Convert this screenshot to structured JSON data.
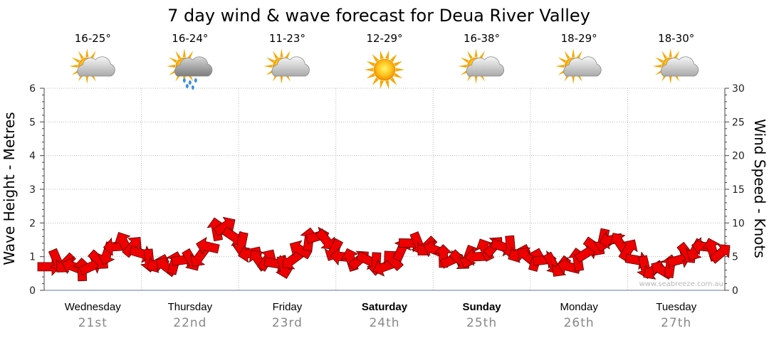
{
  "chart_data": {
    "type": "line",
    "title": "7 day wind & wave forecast for Deua River Valley",
    "ylabel_left": "Wave Height - Metres",
    "ylabel_right": "Wind Speed - Knots",
    "ylim_left": [
      0,
      6
    ],
    "ylim_right": [
      0,
      30
    ],
    "left_ticks": [
      "0",
      "1",
      "2",
      "3",
      "4",
      "5",
      "6"
    ],
    "right_ticks": [
      "0",
      "5",
      "10",
      "15",
      "20",
      "25",
      "30"
    ],
    "grid": true,
    "days": [
      {
        "day": "Wednesday",
        "date": "21st",
        "bold": false,
        "temp": "16-25°",
        "weather": "partly-cloudy"
      },
      {
        "day": "Thursday",
        "date": "22nd",
        "bold": false,
        "temp": "16-24°",
        "weather": "showers"
      },
      {
        "day": "Friday",
        "date": "23rd",
        "bold": false,
        "temp": "11-23°",
        "weather": "partly-cloudy"
      },
      {
        "day": "Saturday",
        "date": "24th",
        "bold": true,
        "temp": "12-29°",
        "weather": "sunny"
      },
      {
        "day": "Sunday",
        "date": "25th",
        "bold": true,
        "temp": "16-38°",
        "weather": "partly-cloudy"
      },
      {
        "day": "Monday",
        "date": "26th",
        "bold": false,
        "temp": "18-29°",
        "weather": "partly-cloudy"
      },
      {
        "day": "Tuesday",
        "date": "27th",
        "bold": false,
        "temp": "18-30°",
        "weather": "partly-cloudy"
      }
    ],
    "series": [
      {
        "name": "Wind Speed - Knots",
        "axis": "right",
        "color": "#ee0000",
        "values": [
          3.5,
          4.5,
          4.0,
          3.5,
          3.0,
          3.5,
          4.5,
          5.5,
          6.5,
          7.0,
          6.5,
          5.5,
          4.5,
          4.0,
          3.5,
          4.0,
          4.5,
          4.5,
          5.0,
          6.5,
          9.0,
          9.5,
          8.0,
          7.0,
          5.5,
          4.5,
          4.5,
          4.0,
          3.5,
          4.5,
          6.0,
          7.5,
          8.0,
          7.5,
          6.0,
          5.0,
          4.5,
          4.5,
          4.5,
          4.0,
          3.5,
          4.5,
          6.0,
          7.0,
          7.0,
          6.5,
          6.0,
          5.0,
          4.5,
          4.5,
          5.0,
          5.0,
          6.0,
          6.5,
          6.5,
          6.5,
          5.5,
          5.0,
          4.5,
          4.5,
          4.0,
          3.5,
          3.5,
          4.5,
          5.5,
          6.5,
          7.5,
          7.5,
          7.0,
          6.0,
          4.5,
          3.5,
          3.0,
          3.0,
          3.5,
          4.5,
          5.5,
          6.0,
          6.5,
          6.0,
          5.5
        ]
      }
    ]
  },
  "watermark": "www.seabreeze.com.au"
}
